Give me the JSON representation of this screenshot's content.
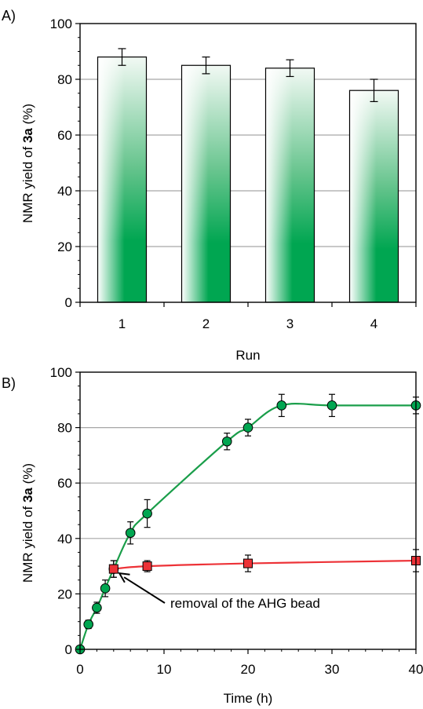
{
  "chart_data": [
    {
      "panel_label": "A)",
      "type": "bar",
      "categories": [
        "1",
        "2",
        "3",
        "4"
      ],
      "values": [
        88,
        85,
        84,
        76
      ],
      "error": [
        3,
        3,
        3,
        4
      ],
      "xlabel": "Run",
      "ylabel": {
        "prefix": "NMR yield of ",
        "bold": "3a",
        "suffix": " (%)"
      },
      "ylim": [
        0,
        100
      ],
      "yticks": [
        "0",
        "20",
        "40",
        "60",
        "80",
        "100"
      ],
      "grid": true,
      "colors": {
        "bar_fill": "#00a651",
        "bar_stroke": "#000000",
        "grid": "#a6a6a6"
      }
    },
    {
      "panel_label": "B)",
      "type": "line",
      "xlabel": "Time (h)",
      "ylabel": {
        "prefix": "NMR yield of ",
        "bold": "3a",
        "suffix": " (%)"
      },
      "xlim": [
        0,
        40
      ],
      "ylim": [
        0,
        100
      ],
      "xticks": [
        "0",
        "10",
        "20",
        "30",
        "40"
      ],
      "yticks": [
        "0",
        "20",
        "40",
        "60",
        "80",
        "100"
      ],
      "grid": true,
      "series": [
        {
          "marker": "circle",
          "color": "#00a651",
          "line_color": "#1a9e4a",
          "x": [
            0,
            1,
            2,
            3,
            4,
            6,
            8,
            17.5,
            20,
            24,
            30,
            40
          ],
          "y": [
            0,
            9,
            15,
            22,
            29,
            42,
            49,
            75,
            80,
            88,
            88,
            88
          ],
          "error": [
            0,
            1.5,
            2,
            3,
            3,
            4,
            5,
            3,
            3,
            4,
            4,
            3
          ]
        },
        {
          "marker": "square",
          "color": "#ed3237",
          "line_color": "#ed3237",
          "x": [
            4,
            8,
            20,
            40
          ],
          "y": [
            29,
            30,
            31,
            32
          ],
          "error": [
            3,
            2,
            3,
            4
          ]
        }
      ],
      "annotation": {
        "text": "removal of the AHG bead",
        "points_to": {
          "x": 4.5,
          "y": 28
        }
      }
    }
  ]
}
